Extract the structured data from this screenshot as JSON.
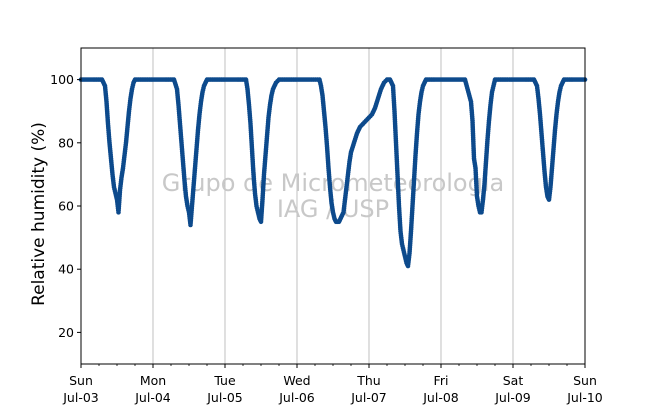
{
  "chart_data": {
    "type": "scatter",
    "ylabel": "Relative humidity (%)",
    "xlim": [
      "2022-07-03T00:00",
      "2022-07-10T00:00"
    ],
    "ylim": [
      10,
      110
    ],
    "yticks": [
      20,
      40,
      60,
      80,
      100
    ],
    "xticks": [
      {
        "day": "Sun",
        "date": "Jul-03"
      },
      {
        "day": "Mon",
        "date": "Jul-04"
      },
      {
        "day": "Tue",
        "date": "Jul-05"
      },
      {
        "day": "Wed",
        "date": "Jul-06"
      },
      {
        "day": "Thu",
        "date": "Jul-07"
      },
      {
        "day": "Fri",
        "date": "Jul-08"
      },
      {
        "day": "Sat",
        "date": "Jul-09"
      },
      {
        "day": "Sun",
        "date": "Jul-10"
      }
    ],
    "grid": "vertical",
    "marker_color": "#0d4a8c",
    "watermark": [
      "Grupo de Micrometeorologia",
      "IAG / USP"
    ],
    "series": [
      {
        "values": [
          [
            "2022-07-03T00:00",
            100
          ],
          [
            "2022-07-03T04:00",
            100
          ],
          [
            "2022-07-03T07:00",
            100
          ],
          [
            "2022-07-03T08:00",
            98
          ],
          [
            "2022-07-03T08:30",
            93
          ],
          [
            "2022-07-03T09:00",
            86
          ],
          [
            "2022-07-03T09:30",
            80
          ],
          [
            "2022-07-03T10:00",
            75
          ],
          [
            "2022-07-03T10:30",
            70
          ],
          [
            "2022-07-03T11:00",
            66
          ],
          [
            "2022-07-03T11:30",
            64
          ],
          [
            "2022-07-03T12:00",
            62
          ],
          [
            "2022-07-03T12:30",
            58
          ],
          [
            "2022-07-03T13:00",
            65
          ],
          [
            "2022-07-03T13:30",
            69
          ],
          [
            "2022-07-03T14:00",
            72
          ],
          [
            "2022-07-03T14:30",
            76
          ],
          [
            "2022-07-03T15:00",
            80
          ],
          [
            "2022-07-03T15:30",
            85
          ],
          [
            "2022-07-03T16:00",
            90
          ],
          [
            "2022-07-03T16:30",
            94
          ],
          [
            "2022-07-03T17:00",
            97
          ],
          [
            "2022-07-03T17:30",
            99
          ],
          [
            "2022-07-03T18:00",
            100
          ],
          [
            "2022-07-03T21:00",
            100
          ],
          [
            "2022-07-04T00:00",
            100
          ],
          [
            "2022-07-04T04:00",
            100
          ],
          [
            "2022-07-04T07:00",
            100
          ],
          [
            "2022-07-04T08:00",
            97
          ],
          [
            "2022-07-04T08:30",
            92
          ],
          [
            "2022-07-04T09:00",
            86
          ],
          [
            "2022-07-04T09:30",
            80
          ],
          [
            "2022-07-04T10:00",
            74
          ],
          [
            "2022-07-04T10:30",
            68
          ],
          [
            "2022-07-04T11:00",
            63
          ],
          [
            "2022-07-04T11:30",
            60
          ],
          [
            "2022-07-04T12:00",
            58
          ],
          [
            "2022-07-04T12:30",
            54
          ],
          [
            "2022-07-04T13:00",
            60
          ],
          [
            "2022-07-04T13:30",
            66
          ],
          [
            "2022-07-04T14:00",
            72
          ],
          [
            "2022-07-04T14:30",
            78
          ],
          [
            "2022-07-04T15:00",
            84
          ],
          [
            "2022-07-04T15:30",
            89
          ],
          [
            "2022-07-04T16:00",
            93
          ],
          [
            "2022-07-04T16:30",
            96
          ],
          [
            "2022-07-04T17:00",
            98
          ],
          [
            "2022-07-04T18:00",
            100
          ],
          [
            "2022-07-04T21:00",
            100
          ],
          [
            "2022-07-05T00:00",
            100
          ],
          [
            "2022-07-05T04:00",
            100
          ],
          [
            "2022-07-05T07:00",
            100
          ],
          [
            "2022-07-05T07:30",
            97
          ],
          [
            "2022-07-05T08:00",
            92
          ],
          [
            "2022-07-05T08:30",
            86
          ],
          [
            "2022-07-05T09:00",
            78
          ],
          [
            "2022-07-05T09:30",
            70
          ],
          [
            "2022-07-05T10:00",
            64
          ],
          [
            "2022-07-05T10:30",
            60
          ],
          [
            "2022-07-05T11:00",
            58
          ],
          [
            "2022-07-05T11:30",
            56
          ],
          [
            "2022-07-05T12:00",
            55
          ],
          [
            "2022-07-05T12:30",
            62
          ],
          [
            "2022-07-05T13:00",
            70
          ],
          [
            "2022-07-05T13:30",
            76
          ],
          [
            "2022-07-05T14:00",
            82
          ],
          [
            "2022-07-05T14:30",
            88
          ],
          [
            "2022-07-05T15:00",
            92
          ],
          [
            "2022-07-05T15:30",
            95
          ],
          [
            "2022-07-05T16:00",
            97
          ],
          [
            "2022-07-05T17:00",
            99
          ],
          [
            "2022-07-05T18:00",
            100
          ],
          [
            "2022-07-05T21:00",
            100
          ],
          [
            "2022-07-06T00:00",
            100
          ],
          [
            "2022-07-06T04:00",
            100
          ],
          [
            "2022-07-06T07:30",
            100
          ],
          [
            "2022-07-06T08:00",
            98
          ],
          [
            "2022-07-06T08:30",
            95
          ],
          [
            "2022-07-06T09:00",
            90
          ],
          [
            "2022-07-06T09:30",
            85
          ],
          [
            "2022-07-06T10:00",
            79
          ],
          [
            "2022-07-06T10:30",
            72
          ],
          [
            "2022-07-06T11:00",
            66
          ],
          [
            "2022-07-06T11:30",
            61
          ],
          [
            "2022-07-06T12:00",
            58
          ],
          [
            "2022-07-06T12:30",
            56
          ],
          [
            "2022-07-06T13:00",
            55
          ],
          [
            "2022-07-06T13:30",
            55
          ],
          [
            "2022-07-06T14:00",
            55
          ],
          [
            "2022-07-06T14:30",
            56
          ],
          [
            "2022-07-06T15:00",
            57
          ],
          [
            "2022-07-06T15:30",
            58
          ],
          [
            "2022-07-06T16:00",
            62
          ],
          [
            "2022-07-06T16:30",
            66
          ],
          [
            "2022-07-06T17:00",
            70
          ],
          [
            "2022-07-06T17:30",
            74
          ],
          [
            "2022-07-06T18:00",
            77
          ],
          [
            "2022-07-06T19:00",
            80
          ],
          [
            "2022-07-06T20:00",
            83
          ],
          [
            "2022-07-06T21:00",
            85
          ],
          [
            "2022-07-06T22:00",
            86
          ],
          [
            "2022-07-06T23:00",
            87
          ],
          [
            "2022-07-07T00:00",
            88
          ],
          [
            "2022-07-07T01:00",
            89
          ],
          [
            "2022-07-07T02:00",
            91
          ],
          [
            "2022-07-07T03:00",
            94
          ],
          [
            "2022-07-07T04:00",
            97
          ],
          [
            "2022-07-07T05:00",
            99
          ],
          [
            "2022-07-07T06:00",
            100
          ],
          [
            "2022-07-07T07:00",
            100
          ],
          [
            "2022-07-07T08:00",
            98
          ],
          [
            "2022-07-07T08:30",
            90
          ],
          [
            "2022-07-07T09:00",
            80
          ],
          [
            "2022-07-07T09:30",
            70
          ],
          [
            "2022-07-07T10:00",
            60
          ],
          [
            "2022-07-07T10:30",
            52
          ],
          [
            "2022-07-07T11:00",
            48
          ],
          [
            "2022-07-07T11:30",
            46
          ],
          [
            "2022-07-07T12:00",
            44
          ],
          [
            "2022-07-07T12:30",
            42
          ],
          [
            "2022-07-07T13:00",
            41
          ],
          [
            "2022-07-07T13:30",
            45
          ],
          [
            "2022-07-07T14:00",
            52
          ],
          [
            "2022-07-07T14:30",
            60
          ],
          [
            "2022-07-07T15:00",
            68
          ],
          [
            "2022-07-07T15:30",
            76
          ],
          [
            "2022-07-07T16:00",
            83
          ],
          [
            "2022-07-07T16:30",
            89
          ],
          [
            "2022-07-07T17:00",
            93
          ],
          [
            "2022-07-07T17:30",
            96
          ],
          [
            "2022-07-07T18:00",
            98
          ],
          [
            "2022-07-07T19:00",
            100
          ],
          [
            "2022-07-07T22:00",
            100
          ],
          [
            "2022-07-08T00:00",
            100
          ],
          [
            "2022-07-08T04:00",
            100
          ],
          [
            "2022-07-08T08:00",
            100
          ],
          [
            "2022-07-08T10:00",
            93
          ],
          [
            "2022-07-08T10:30",
            87
          ],
          [
            "2022-07-08T11:00",
            75
          ],
          [
            "2022-07-08T11:30",
            72
          ],
          [
            "2022-07-08T12:00",
            63
          ],
          [
            "2022-07-08T12:30",
            60
          ],
          [
            "2022-07-08T13:00",
            58
          ],
          [
            "2022-07-08T13:30",
            58
          ],
          [
            "2022-07-08T14:00",
            62
          ],
          [
            "2022-07-08T14:30",
            67
          ],
          [
            "2022-07-08T15:00",
            74
          ],
          [
            "2022-07-08T15:30",
            81
          ],
          [
            "2022-07-08T16:00",
            87
          ],
          [
            "2022-07-08T16:30",
            92
          ],
          [
            "2022-07-08T17:00",
            96
          ],
          [
            "2022-07-08T17:30",
            98
          ],
          [
            "2022-07-08T18:00",
            100
          ],
          [
            "2022-07-08T21:00",
            100
          ],
          [
            "2022-07-09T00:00",
            100
          ],
          [
            "2022-07-09T04:00",
            100
          ],
          [
            "2022-07-09T07:00",
            100
          ],
          [
            "2022-07-09T08:00",
            98
          ],
          [
            "2022-07-09T08:30",
            94
          ],
          [
            "2022-07-09T09:00",
            89
          ],
          [
            "2022-07-09T09:30",
            83
          ],
          [
            "2022-07-09T10:00",
            77
          ],
          [
            "2022-07-09T10:30",
            71
          ],
          [
            "2022-07-09T11:00",
            66
          ],
          [
            "2022-07-09T11:30",
            63
          ],
          [
            "2022-07-09T12:00",
            62
          ],
          [
            "2022-07-09T12:30",
            66
          ],
          [
            "2022-07-09T13:00",
            72
          ],
          [
            "2022-07-09T13:30",
            78
          ],
          [
            "2022-07-09T14:00",
            84
          ],
          [
            "2022-07-09T14:30",
            89
          ],
          [
            "2022-07-09T15:00",
            93
          ],
          [
            "2022-07-09T15:30",
            96
          ],
          [
            "2022-07-09T16:00",
            98
          ],
          [
            "2022-07-09T17:00",
            100
          ],
          [
            "2022-07-09T20:00",
            100
          ],
          [
            "2022-07-10T00:00",
            100
          ]
        ]
      }
    ]
  }
}
